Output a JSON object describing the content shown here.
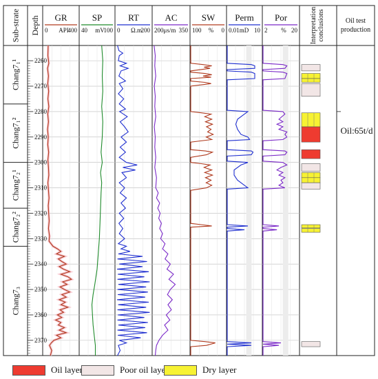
{
  "headers": {
    "substrate": "Sub-strate",
    "depth": "Depth",
    "interpretation": "Interpretation conclusions",
    "oil_test": "Oil test production"
  },
  "tracks": [
    {
      "name": "GR",
      "scale_left": "0",
      "unit": "API",
      "scale_right": "400",
      "color": "#b03a1e"
    },
    {
      "name": "SP",
      "scale_left": "40",
      "unit": "mV",
      "scale_right": "100",
      "color": "#1e8a2a"
    },
    {
      "name": "RT",
      "scale_left": "0",
      "unit": "Ω.m",
      "scale_right": "200",
      "color": "#1f2fd0"
    },
    {
      "name": "AC",
      "scale_left": "200μs/m",
      "unit": "",
      "scale_right": "350",
      "color": "#7a28c8"
    },
    {
      "name": "SW",
      "scale_left": "100",
      "unit": "%",
      "scale_right": "0",
      "color": "#b03a1e"
    },
    {
      "name": "Perm",
      "scale_left": "0.01mD",
      "unit": "",
      "scale_right": "10",
      "color": "#1f2fd0"
    },
    {
      "name": "Por",
      "scale_left": "2",
      "unit": "%",
      "scale_right": "20",
      "color": "#7a28c8"
    }
  ],
  "depth_ticks": [
    "2260",
    "2270",
    "2280",
    "2290",
    "2300",
    "2310",
    "2320",
    "2330",
    "2340",
    "2350",
    "2360",
    "2370"
  ],
  "depth_range": [
    2254,
    2376
  ],
  "zones": [
    {
      "label": "Chang7₁¹",
      "top": 2254,
      "bottom": 2277
    },
    {
      "label": "Chang7₁²",
      "top": 2277,
      "bottom": 2300
    },
    {
      "label": "Chang7₂¹",
      "top": 2300,
      "bottom": 2318
    },
    {
      "label": "Chang7₂²",
      "top": 2318,
      "bottom": 2333
    },
    {
      "label": "Chang7₃",
      "top": 2333,
      "bottom": 2376
    }
  ],
  "interpretation": [
    {
      "top": 2261.5,
      "bottom": 2264,
      "type": "poor"
    },
    {
      "top": 2265,
      "bottom": 2267,
      "type": "dry"
    },
    {
      "top": 2267,
      "bottom": 2268.5,
      "type": "dry"
    },
    {
      "top": 2269,
      "bottom": 2274,
      "type": "poor"
    },
    {
      "top": 2280.5,
      "bottom": 2286,
      "type": "dry"
    },
    {
      "top": 2286,
      "bottom": 2292,
      "type": "oil"
    },
    {
      "top": 2295,
      "bottom": 2298.5,
      "type": "oil"
    },
    {
      "top": 2300.5,
      "bottom": 2303.5,
      "type": "poor"
    },
    {
      "top": 2304,
      "bottom": 2306,
      "type": "dry"
    },
    {
      "top": 2306,
      "bottom": 2308,
      "type": "dry"
    },
    {
      "top": 2308,
      "bottom": 2310.5,
      "type": "poor"
    },
    {
      "top": 2324.5,
      "bottom": 2325.8,
      "type": "dry"
    },
    {
      "top": 2326,
      "bottom": 2327.5,
      "type": "dry"
    },
    {
      "top": 2370.5,
      "bottom": 2372.5,
      "type": "poor"
    }
  ],
  "oil_test_result": "Oil:65t/d",
  "legend": [
    {
      "label": "Oil layer",
      "color": "#ee3b30"
    },
    {
      "label": "Poor oil layer",
      "color": "#f2e6e6"
    },
    {
      "label": "Dry layer",
      "color": "#f7f233"
    }
  ],
  "series": {
    "GR": [
      [
        2254,
        55
      ],
      [
        2258,
        52
      ],
      [
        2261,
        62
      ],
      [
        2263,
        48
      ],
      [
        2266,
        58
      ],
      [
        2269,
        50
      ],
      [
        2272,
        60
      ],
      [
        2275,
        52
      ],
      [
        2278,
        62
      ],
      [
        2281,
        50
      ],
      [
        2284,
        58
      ],
      [
        2287,
        48
      ],
      [
        2290,
        56
      ],
      [
        2293,
        50
      ],
      [
        2296,
        60
      ],
      [
        2299,
        52
      ],
      [
        2302,
        58
      ],
      [
        2305,
        62
      ],
      [
        2308,
        52
      ],
      [
        2311,
        58
      ],
      [
        2314,
        64
      ],
      [
        2317,
        56
      ],
      [
        2320,
        60
      ],
      [
        2323,
        66
      ],
      [
        2326,
        58
      ],
      [
        2329,
        70
      ],
      [
        2331,
        64
      ],
      [
        2333,
        110
      ],
      [
        2334,
        160
      ],
      [
        2335,
        200
      ],
      [
        2336,
        150
      ],
      [
        2337,
        240
      ],
      [
        2338,
        170
      ],
      [
        2339,
        210
      ],
      [
        2340,
        260
      ],
      [
        2341,
        180
      ],
      [
        2342,
        230
      ],
      [
        2343,
        300
      ],
      [
        2344,
        200
      ],
      [
        2345,
        280
      ],
      [
        2346,
        320
      ],
      [
        2347,
        220
      ],
      [
        2348,
        270
      ],
      [
        2349,
        190
      ],
      [
        2350,
        240
      ],
      [
        2351,
        300
      ],
      [
        2352,
        210
      ],
      [
        2353,
        260
      ],
      [
        2354,
        180
      ],
      [
        2355,
        250
      ],
      [
        2356,
        200
      ],
      [
        2357,
        280
      ],
      [
        2358,
        190
      ],
      [
        2359,
        230
      ],
      [
        2360,
        160
      ],
      [
        2361,
        210
      ],
      [
        2362,
        140
      ],
      [
        2363,
        200
      ],
      [
        2364,
        170
      ],
      [
        2365,
        240
      ],
      [
        2366,
        180
      ],
      [
        2367,
        260
      ],
      [
        2368,
        150
      ],
      [
        2369,
        200
      ],
      [
        2370,
        120
      ],
      [
        2371,
        90
      ],
      [
        2372,
        70
      ],
      [
        2374,
        95
      ],
      [
        2376,
        80
      ]
    ],
    "SP": [
      [
        2254,
        78
      ],
      [
        2260,
        80
      ],
      [
        2266,
        79
      ],
      [
        2272,
        80
      ],
      [
        2278,
        78
      ],
      [
        2284,
        80
      ],
      [
        2290,
        79
      ],
      [
        2296,
        77
      ],
      [
        2300,
        79
      ],
      [
        2304,
        76
      ],
      [
        2308,
        78
      ],
      [
        2312,
        77
      ],
      [
        2318,
        76
      ],
      [
        2324,
        75
      ],
      [
        2330,
        74
      ],
      [
        2336,
        72
      ],
      [
        2342,
        70
      ],
      [
        2348,
        66
      ],
      [
        2352,
        63
      ],
      [
        2356,
        61
      ],
      [
        2360,
        62
      ],
      [
        2364,
        63
      ],
      [
        2368,
        65
      ],
      [
        2372,
        67
      ],
      [
        2376,
        67
      ]
    ],
    "RT": [
      [
        2254,
        10
      ],
      [
        2256,
        18
      ],
      [
        2257,
        40
      ],
      [
        2258,
        20
      ],
      [
        2260,
        15
      ],
      [
        2261,
        60
      ],
      [
        2262,
        25
      ],
      [
        2263,
        70
      ],
      [
        2264,
        30
      ],
      [
        2266,
        18
      ],
      [
        2268,
        55
      ],
      [
        2269,
        20
      ],
      [
        2271,
        40
      ],
      [
        2273,
        15
      ],
      [
        2275,
        45
      ],
      [
        2277,
        20
      ],
      [
        2279,
        55
      ],
      [
        2280,
        22
      ],
      [
        2282,
        65
      ],
      [
        2284,
        25
      ],
      [
        2286,
        50
      ],
      [
        2288,
        70
      ],
      [
        2290,
        30
      ],
      [
        2292,
        60
      ],
      [
        2294,
        25
      ],
      [
        2296,
        55
      ],
      [
        2298,
        20
      ],
      [
        2300,
        60
      ],
      [
        2301,
        120
      ],
      [
        2302,
        40
      ],
      [
        2303,
        110
      ],
      [
        2304,
        35
      ],
      [
        2306,
        60
      ],
      [
        2308,
        20
      ],
      [
        2310,
        50
      ],
      [
        2312,
        25
      ],
      [
        2314,
        60
      ],
      [
        2316,
        30
      ],
      [
        2318,
        55
      ],
      [
        2320,
        20
      ],
      [
        2322,
        45
      ],
      [
        2324,
        18
      ],
      [
        2326,
        40
      ],
      [
        2328,
        20
      ],
      [
        2330,
        50
      ],
      [
        2332,
        15
      ],
      [
        2333,
        60
      ],
      [
        2334,
        30
      ],
      [
        2335,
        80
      ],
      [
        2336,
        15
      ],
      [
        2337,
        150
      ],
      [
        2338,
        10
      ],
      [
        2339,
        175
      ],
      [
        2340,
        20
      ],
      [
        2341,
        150
      ],
      [
        2342,
        8
      ],
      [
        2343,
        185
      ],
      [
        2344,
        12
      ],
      [
        2345,
        160
      ],
      [
        2346,
        10
      ],
      [
        2347,
        190
      ],
      [
        2348,
        15
      ],
      [
        2349,
        170
      ],
      [
        2350,
        10
      ],
      [
        2351,
        180
      ],
      [
        2352,
        12
      ],
      [
        2353,
        165
      ],
      [
        2354,
        8
      ],
      [
        2355,
        185
      ],
      [
        2356,
        14
      ],
      [
        2357,
        170
      ],
      [
        2358,
        10
      ],
      [
        2359,
        190
      ],
      [
        2360,
        12
      ],
      [
        2361,
        160
      ],
      [
        2362,
        10
      ],
      [
        2363,
        180
      ],
      [
        2364,
        15
      ],
      [
        2365,
        165
      ],
      [
        2366,
        10
      ],
      [
        2367,
        175
      ],
      [
        2368,
        12
      ],
      [
        2369,
        140
      ],
      [
        2370,
        20
      ],
      [
        2371,
        60
      ],
      [
        2372,
        15
      ],
      [
        2374,
        25
      ],
      [
        2376,
        10
      ]
    ],
    "AC": [
      [
        2254,
        205
      ],
      [
        2258,
        210
      ],
      [
        2262,
        208
      ],
      [
        2266,
        212
      ],
      [
        2270,
        206
      ],
      [
        2274,
        210
      ],
      [
        2278,
        208
      ],
      [
        2282,
        212
      ],
      [
        2286,
        206
      ],
      [
        2290,
        210
      ],
      [
        2294,
        208
      ],
      [
        2298,
        212
      ],
      [
        2302,
        208
      ],
      [
        2306,
        215
      ],
      [
        2310,
        212
      ],
      [
        2312,
        222
      ],
      [
        2314,
        215
      ],
      [
        2316,
        228
      ],
      [
        2318,
        220
      ],
      [
        2320,
        230
      ],
      [
        2322,
        224
      ],
      [
        2324,
        235
      ],
      [
        2326,
        228
      ],
      [
        2328,
        240
      ],
      [
        2330,
        232
      ],
      [
        2332,
        250
      ],
      [
        2334,
        240
      ],
      [
        2336,
        262
      ],
      [
        2338,
        250
      ],
      [
        2340,
        272
      ],
      [
        2342,
        258
      ],
      [
        2344,
        285
      ],
      [
        2346,
        266
      ],
      [
        2348,
        292
      ],
      [
        2350,
        272
      ],
      [
        2352,
        260
      ],
      [
        2354,
        280
      ],
      [
        2356,
        262
      ],
      [
        2358,
        276
      ],
      [
        2360,
        255
      ],
      [
        2362,
        270
      ],
      [
        2364,
        248
      ],
      [
        2366,
        262
      ],
      [
        2368,
        240
      ],
      [
        2370,
        225
      ],
      [
        2372,
        215
      ],
      [
        2374,
        212
      ],
      [
        2376,
        210
      ]
    ],
    "SW": [
      [
        2254,
        100
      ],
      [
        2261,
        100
      ],
      [
        2261.5,
        65
      ],
      [
        2262,
        40
      ],
      [
        2262.5,
        62
      ],
      [
        2263,
        45
      ],
      [
        2264,
        100
      ],
      [
        2264.5,
        100
      ],
      [
        2265,
        60
      ],
      [
        2265.5,
        40
      ],
      [
        2266,
        65
      ],
      [
        2266.5,
        42
      ],
      [
        2267,
        100
      ],
      [
        2268,
        100
      ],
      [
        2268.5,
        60
      ],
      [
        2269,
        42
      ],
      [
        2270,
        100
      ],
      [
        2280,
        100
      ],
      [
        2280.5,
        70
      ],
      [
        2281,
        42
      ],
      [
        2282,
        60
      ],
      [
        2283,
        40
      ],
      [
        2284,
        58
      ],
      [
        2285,
        38
      ],
      [
        2286,
        55
      ],
      [
        2287,
        42
      ],
      [
        2288,
        52
      ],
      [
        2289,
        36
      ],
      [
        2290,
        56
      ],
      [
        2291,
        40
      ],
      [
        2292,
        100
      ],
      [
        2295,
        100
      ],
      [
        2295.5,
        58
      ],
      [
        2296,
        38
      ],
      [
        2297,
        55
      ],
      [
        2298,
        100
      ],
      [
        2300,
        100
      ],
      [
        2300.5,
        70
      ],
      [
        2301,
        45
      ],
      [
        2302,
        62
      ],
      [
        2303,
        40
      ],
      [
        2304,
        60
      ],
      [
        2305,
        38
      ],
      [
        2306,
        58
      ],
      [
        2307,
        42
      ],
      [
        2308,
        56
      ],
      [
        2309,
        40
      ],
      [
        2310,
        55
      ],
      [
        2311,
        100
      ],
      [
        2324,
        100
      ],
      [
        2324.5,
        70
      ],
      [
        2325,
        40
      ],
      [
        2325.5,
        100
      ],
      [
        2370,
        100
      ],
      [
        2370.5,
        60
      ],
      [
        2371,
        30
      ],
      [
        2372,
        55
      ],
      [
        2372.5,
        100
      ],
      [
        2376,
        100
      ]
    ],
    "Perm": [
      [
        2254,
        0
      ],
      [
        2261,
        0
      ],
      [
        2261.5,
        7
      ],
      [
        2262,
        8
      ],
      [
        2263,
        8
      ],
      [
        2263.5,
        0
      ],
      [
        2264,
        0
      ],
      [
        2264.5,
        7
      ],
      [
        2265,
        8
      ],
      [
        2267,
        8
      ],
      [
        2267.5,
        0
      ],
      [
        2279.5,
        0
      ],
      [
        2280,
        6
      ],
      [
        2281,
        5
      ],
      [
        2283,
        3
      ],
      [
        2285,
        2.5
      ],
      [
        2287,
        3
      ],
      [
        2289,
        4
      ],
      [
        2290,
        6
      ],
      [
        2291,
        6.5
      ],
      [
        2291.5,
        0
      ],
      [
        2295,
        0
      ],
      [
        2295.5,
        7
      ],
      [
        2296,
        7.5
      ],
      [
        2297,
        7
      ],
      [
        2297.5,
        0
      ],
      [
        2299.5,
        0
      ],
      [
        2300,
        6
      ],
      [
        2301,
        4
      ],
      [
        2303,
        2
      ],
      [
        2305,
        2
      ],
      [
        2307,
        3
      ],
      [
        2309,
        5
      ],
      [
        2310,
        6
      ],
      [
        2310.5,
        0
      ],
      [
        2324.5,
        0
      ],
      [
        2325,
        6
      ],
      [
        2325.5,
        0
      ],
      [
        2326,
        0
      ],
      [
        2326.5,
        5
      ],
      [
        2327,
        0
      ],
      [
        2370.5,
        0
      ],
      [
        2371,
        7
      ],
      [
        2371.5,
        0
      ],
      [
        2372,
        7
      ],
      [
        2372.5,
        0
      ],
      [
        2376,
        0
      ]
    ],
    "Por": [
      [
        2254,
        2
      ],
      [
        2261,
        2
      ],
      [
        2261.5,
        12
      ],
      [
        2262,
        14
      ],
      [
        2263,
        13
      ],
      [
        2263.5,
        2
      ],
      [
        2264,
        2
      ],
      [
        2264.5,
        12
      ],
      [
        2265,
        14
      ],
      [
        2267,
        13
      ],
      [
        2267.5,
        2
      ],
      [
        2279.5,
        2
      ],
      [
        2280,
        12
      ],
      [
        2281,
        13
      ],
      [
        2283,
        10
      ],
      [
        2284,
        12
      ],
      [
        2285,
        9
      ],
      [
        2286,
        12
      ],
      [
        2287,
        10
      ],
      [
        2288,
        14
      ],
      [
        2289,
        13
      ],
      [
        2290,
        14
      ],
      [
        2291,
        12
      ],
      [
        2291.5,
        2
      ],
      [
        2295,
        2
      ],
      [
        2295.5,
        13
      ],
      [
        2296,
        14
      ],
      [
        2297,
        13
      ],
      [
        2297.5,
        2
      ],
      [
        2299.5,
        2
      ],
      [
        2300,
        12
      ],
      [
        2301,
        14
      ],
      [
        2302,
        11
      ],
      [
        2303,
        9
      ],
      [
        2304,
        12
      ],
      [
        2305,
        10
      ],
      [
        2306,
        13
      ],
      [
        2307,
        11
      ],
      [
        2308,
        12
      ],
      [
        2309,
        10
      ],
      [
        2310,
        13
      ],
      [
        2310.5,
        2
      ],
      [
        2324.5,
        2
      ],
      [
        2325,
        10
      ],
      [
        2325.5,
        2
      ],
      [
        2326,
        2
      ],
      [
        2326.5,
        9
      ],
      [
        2327,
        2
      ],
      [
        2370.5,
        2
      ],
      [
        2371,
        11
      ],
      [
        2371.5,
        2
      ],
      [
        2372,
        10
      ],
      [
        2372.5,
        2
      ],
      [
        2376,
        2
      ]
    ]
  }
}
